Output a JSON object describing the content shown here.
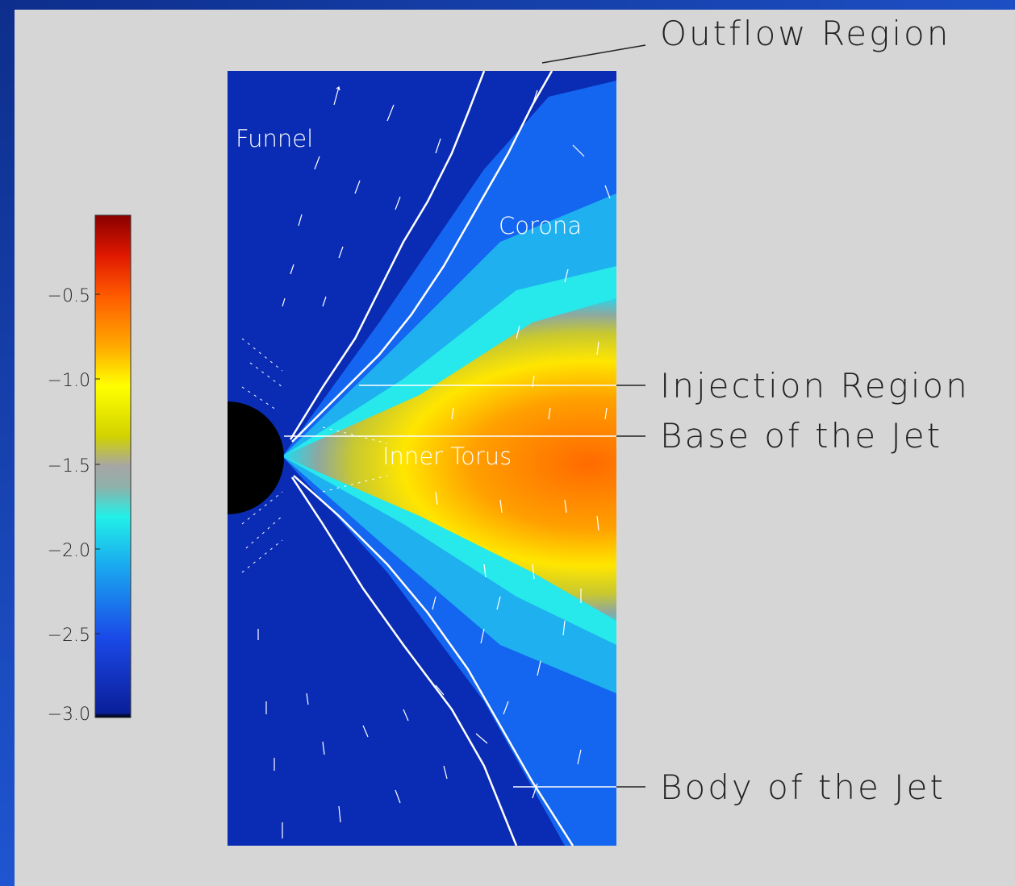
{
  "colorbar": {
    "tick_labels": [
      "−0.5",
      "−1.0",
      "−1.5",
      "−2.0",
      "−2.5",
      "−3.0"
    ],
    "tick_values": [
      -0.5,
      -1.0,
      -1.5,
      -2.0,
      -2.5,
      -3.0
    ],
    "range": [
      -3.0,
      0.0
    ],
    "colors": [
      "#000000",
      "#0a1f9a",
      "#1a5cf0",
      "#17c2f0",
      "#22f0e8",
      "#8fb0a8",
      "#a6a6a6",
      "#d2d200",
      "#ffff00",
      "#ffa800",
      "#ff6a00",
      "#ff3000",
      "#cc0000",
      "#8a0000"
    ]
  },
  "plot": {
    "region_labels": {
      "funnel": "Funnel",
      "corona": "Corona",
      "inner_torus": "Inner Torus"
    }
  },
  "callouts": {
    "outflow_region": "Outflow Region",
    "injection_region": "Injection Region",
    "base_of_jet": "Base of the Jet",
    "body_of_jet": "Body of the Jet"
  },
  "colors": {
    "background": "#d6d6d6",
    "frame": "#1a46b8",
    "plot_blue": "#0a2cb4",
    "label_text": "#222222"
  }
}
